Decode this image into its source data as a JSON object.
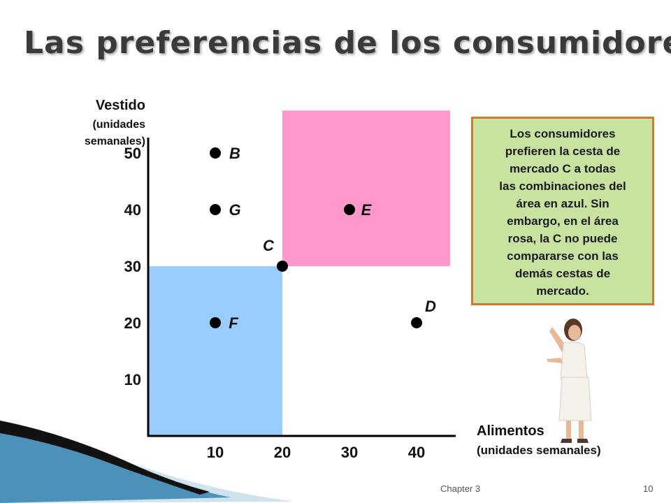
{
  "slide": {
    "title": "Las preferencias de los consumidores",
    "footer_chapter": "Chapter 3",
    "footer_page": "10"
  },
  "callout": {
    "lines": [
      "Los consumidores",
      "prefieren la cesta de",
      "mercado C a todas",
      "las combinaciones del",
      "área en azul. Sin",
      "embargo, en el área",
      "rosa, la C no puede",
      "compararse con las",
      "demás cestas de",
      "mercado."
    ]
  },
  "chart_data": {
    "type": "scatter",
    "title": "",
    "ylabel": "Vestido",
    "ylabel_unit": "(unidades semanales)",
    "xlabel": "Alimentos",
    "xlabel_unit": "(unidades semanales)",
    "x_ticks": [
      "10",
      "20",
      "30",
      "40"
    ],
    "y_ticks": [
      "10",
      "20",
      "30",
      "40",
      "50"
    ],
    "xlim": [
      0,
      45
    ],
    "ylim": [
      0,
      56
    ],
    "points": [
      {
        "label": "B",
        "x": 10,
        "y": 50
      },
      {
        "label": "G",
        "x": 10,
        "y": 40
      },
      {
        "label": "E",
        "x": 30,
        "y": 40
      },
      {
        "label": "C",
        "x": 20,
        "y": 30
      },
      {
        "label": "F",
        "x": 10,
        "y": 20
      },
      {
        "label": "D",
        "x": 40,
        "y": 20
      }
    ],
    "regions": [
      {
        "name": "blue",
        "x": [
          0,
          20
        ],
        "y": [
          0,
          30
        ],
        "color": "#99ccff"
      },
      {
        "name": "pink",
        "x": [
          20,
          45
        ],
        "y": [
          30,
          57.5
        ],
        "color": "#ff99cc"
      }
    ],
    "grid": false,
    "legend": "none"
  }
}
